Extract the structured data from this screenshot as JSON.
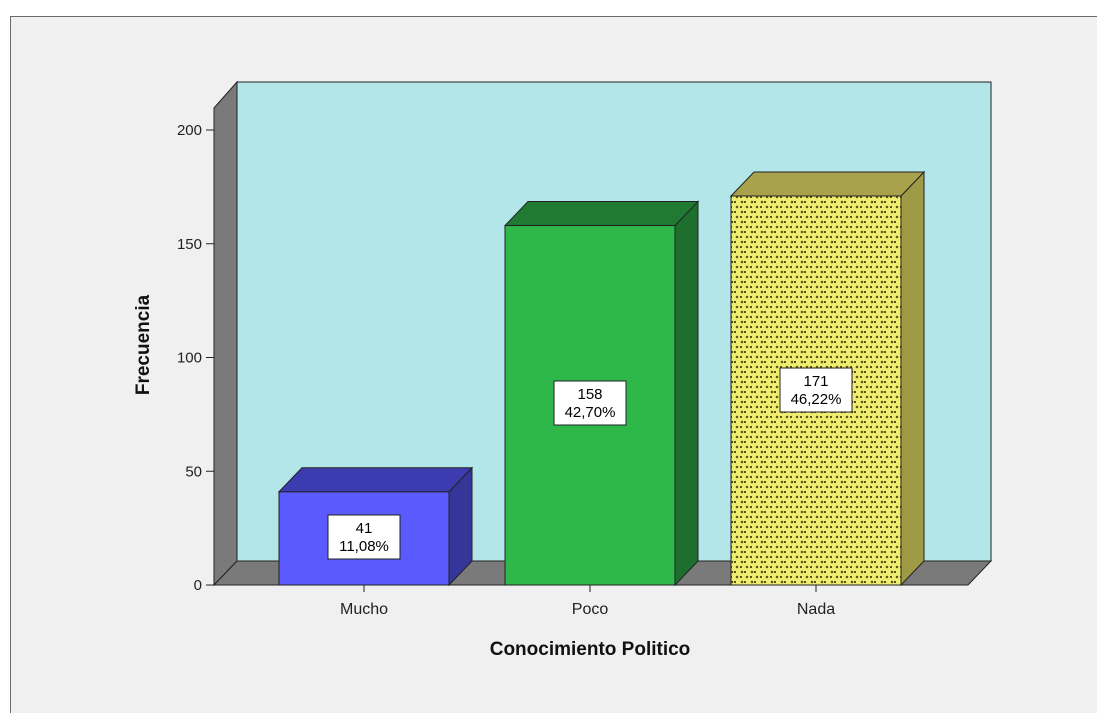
{
  "chart_data": {
    "type": "bar",
    "categories": [
      "Mucho",
      "Poco",
      "Nada"
    ],
    "values": [
      41,
      158,
      171
    ],
    "percent_labels": [
      "11,08%",
      "42,70%",
      "46,22%"
    ],
    "xlabel": "Conocimiento Politico",
    "ylabel": "Frecuencia",
    "ylim": [
      0,
      200
    ],
    "yticks": [
      "0",
      "50",
      "100",
      "150",
      "200"
    ],
    "grid": false,
    "style": "3d",
    "colors": {
      "plot_background": "#b3e6e8",
      "walls": "#7a7a7a",
      "bars": [
        "#5a5aff",
        "#2eb84a",
        "#f0ee70"
      ],
      "bar_sides": [
        "#35359a",
        "#1e6e2e",
        "#9e9a46"
      ],
      "bar_tops": [
        "#3c3cb0",
        "#207a32",
        "#a8a24c"
      ]
    },
    "patterns": [
      "solid",
      "solid",
      "crosshatch-dots"
    ]
  }
}
